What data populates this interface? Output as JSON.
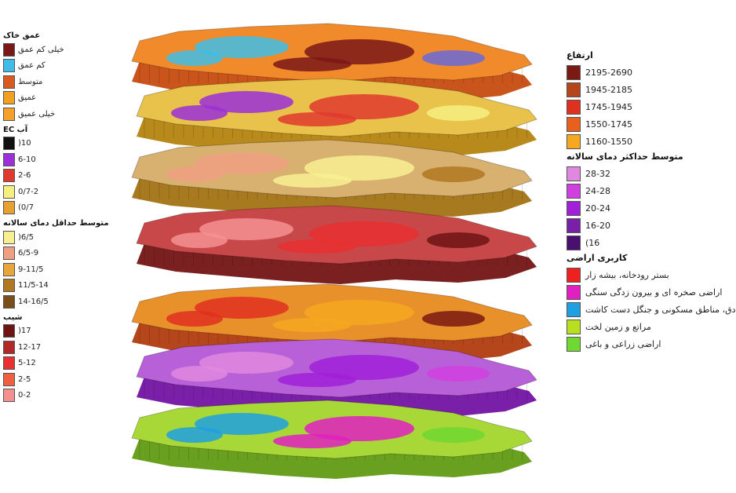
{
  "legend_left": {
    "groups": [
      {
        "title": "عمق خاک",
        "items": [
          {
            "label": "خیلی کم عمق",
            "color": "#7a1818"
          },
          {
            "label": "کم عمق",
            "color": "#3fbde8"
          },
          {
            "label": "متوسط",
            "color": "#d85a1e"
          },
          {
            "label": "عمیق",
            "color": "#f2a020"
          },
          {
            "label": "خیلی عمیق",
            "color": "#f5a028"
          }
        ]
      },
      {
        "title": "EC آب",
        "items": [
          {
            "label": ")10",
            "color": "#111111"
          },
          {
            "label": "6-10",
            "color": "#9b30d8"
          },
          {
            "label": "2-6",
            "color": "#e03a2e"
          },
          {
            "label": "0/7-2",
            "color": "#f5ef80"
          },
          {
            "label": "(0/7",
            "color": "#e8a030"
          }
        ]
      },
      {
        "title": "متوسط حداقل دمای سالانه",
        "items": [
          {
            "label": ")6/5",
            "color": "#f8f090"
          },
          {
            "label": "6/5-9",
            "color": "#f0a080"
          },
          {
            "label": "9-11/5",
            "color": "#e8a53a"
          },
          {
            "label": "11/5-14",
            "color": "#b07820"
          },
          {
            "label": "14-16/5",
            "color": "#7a4e18"
          }
        ]
      },
      {
        "title": "شیب",
        "items": [
          {
            "label": ")17",
            "color": "#6e1414"
          },
          {
            "label": "12-17",
            "color": "#b02828"
          },
          {
            "label": "5-12",
            "color": "#e83030"
          },
          {
            "label": "2-5",
            "color": "#f06040"
          },
          {
            "label": "0-2",
            "color": "#f59090"
          }
        ]
      }
    ]
  },
  "legend_right": {
    "groups": [
      {
        "title": "ارتفاع",
        "items": [
          {
            "label": "2195-2690",
            "color": "#7a1a12"
          },
          {
            "label": "1945-2185",
            "color": "#b5451a"
          },
          {
            "label": "1745-1945",
            "color": "#e03020"
          },
          {
            "label": "1550-1745",
            "color": "#e8601e"
          },
          {
            "label": "1160-1550",
            "color": "#f5a820"
          }
        ]
      },
      {
        "title": "متوسط حداکثر دمای سالانه",
        "items": [
          {
            "label": "28-32",
            "color": "#e088e0"
          },
          {
            "label": "24-28",
            "color": "#d040e0"
          },
          {
            "label": "20-24",
            "color": "#a020d8"
          },
          {
            "label": "16-20",
            "color": "#7a20a8"
          },
          {
            "label": "(16",
            "color": "#4a1070"
          }
        ]
      },
      {
        "title": "کاربری اراضی",
        "items": [
          {
            "label": "بستر رودخانه، بیشه زار",
            "color": "#ee2020"
          },
          {
            "label": "اراضی صخره ای و بیرون زدگی سنگی",
            "color": "#e020c0"
          },
          {
            "label": "دق، مناطق مسکونی و جنگل دست کاشت",
            "color": "#20a0e0"
          },
          {
            "label": "مراتع و زمین لخت",
            "color": "#b8e020"
          },
          {
            "label": "اراضی زراعی و باغی",
            "color": "#70d830"
          }
        ]
      }
    ]
  },
  "layers": [
    {
      "name": "soil-depth-layer",
      "top": "#f08a2a",
      "side": "#c9541c",
      "spots": [
        "#3fbde8",
        "#7a1818",
        "#6a6ad8"
      ]
    },
    {
      "name": "water-ec-layer",
      "top": "#e8c24a",
      "side": "#b88a1c",
      "spots": [
        "#9b30d8",
        "#e03a2e",
        "#f5ef80"
      ]
    },
    {
      "name": "min-temperature-layer",
      "top": "#d8b070",
      "side": "#a87a20",
      "spots": [
        "#f0a080",
        "#f8f090",
        "#b07820"
      ]
    },
    {
      "name": "slope-layer",
      "top": "#c8484a",
      "side": "#7a2020",
      "spots": [
        "#f59090",
        "#e83030",
        "#6e1414"
      ]
    },
    {
      "name": "elevation-layer",
      "top": "#e8902a",
      "side": "#b5451a",
      "spots": [
        "#e03020",
        "#f5a820",
        "#7a1a12"
      ]
    },
    {
      "name": "max-temperature-layer",
      "top": "#b860d8",
      "side": "#7a20a8",
      "spots": [
        "#e088e0",
        "#a020d8",
        "#d040e0"
      ]
    },
    {
      "name": "landuse-layer",
      "top": "#a8d838",
      "side": "#6aa020",
      "spots": [
        "#20a0e0",
        "#e020c0",
        "#70d830"
      ]
    }
  ]
}
